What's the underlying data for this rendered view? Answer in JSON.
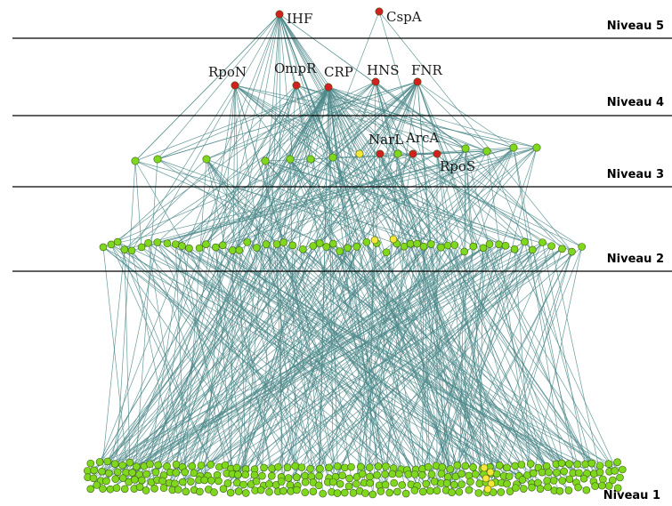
{
  "levels": [
    {
      "label": "Niveau 5"
    },
    {
      "label": "Niveau 4"
    },
    {
      "label": "Niveau 3"
    },
    {
      "label": "Niveau 2"
    },
    {
      "label": "Niveau 1"
    }
  ],
  "regulators": [
    {
      "name": "IHF",
      "level": 5,
      "color": "#d21f1f"
    },
    {
      "name": "CspA",
      "level": 5,
      "color": "#d21f1f"
    },
    {
      "name": "RpoN",
      "level": 4,
      "color": "#d21f1f"
    },
    {
      "name": "OmpR",
      "level": 4,
      "color": "#d21f1f"
    },
    {
      "name": "CRP",
      "level": 4,
      "color": "#d21f1f"
    },
    {
      "name": "HNS",
      "level": 4,
      "color": "#d21f1f"
    },
    {
      "name": "FNR",
      "level": 4,
      "color": "#d21f1f"
    },
    {
      "name": "NarL",
      "level": 3,
      "color": "#d21f1f"
    },
    {
      "name": "ArcA",
      "level": 3,
      "color": "#d21f1f"
    },
    {
      "name": "RpoS",
      "level": 3,
      "color": "#d21f1f"
    }
  ],
  "colors": {
    "regulator": "#d21f1f",
    "gene": "#7fd81e",
    "highlight": "#f5e63a",
    "edge": "#4f8a8b"
  }
}
